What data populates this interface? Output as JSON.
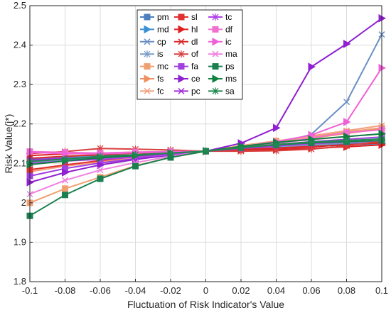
{
  "chart_data": {
    "type": "line",
    "xlabel": "Fluctuation of Risk Indicator's Value",
    "ylabel": "Risk Value(j*)",
    "xlim": [
      -0.1,
      0.1
    ],
    "ylim": [
      1.8,
      2.5
    ],
    "x": [
      -0.1,
      -0.08,
      -0.06,
      -0.04,
      -0.02,
      0,
      0.02,
      0.04,
      0.06,
      0.08,
      0.1
    ],
    "xtick_labels": [
      "-0.1",
      "-0.08",
      "-0.06",
      "-0.04",
      "-0.02",
      "0",
      "0.02",
      "0.04",
      "0.06",
      "0.08",
      "0.1"
    ],
    "yticks": [
      1.8,
      1.9,
      2.0,
      2.1,
      2.2,
      2.3,
      2.4,
      2.5
    ],
    "ytick_labels": [
      "1.8",
      "1.9",
      "2",
      "2.1",
      "2.2",
      "2.3",
      "2.4",
      "2.5"
    ],
    "grid": true,
    "legend_position": "top-center",
    "legend_columns": 3,
    "series": [
      {
        "name": "pm",
        "color": "#4d7fbf",
        "marker": "square",
        "values": [
          2.105,
          2.109,
          2.113,
          2.118,
          2.124,
          2.131,
          2.136,
          2.14,
          2.145,
          2.149,
          2.153
        ]
      },
      {
        "name": "md",
        "color": "#3b8fd4",
        "marker": "triangle",
        "values": [
          2.108,
          2.111,
          2.115,
          2.119,
          2.125,
          2.131,
          2.135,
          2.139,
          2.143,
          2.147,
          2.15
        ]
      },
      {
        "name": "cp",
        "color": "#6a8fc4",
        "marker": "x",
        "values": [
          2.112,
          2.115,
          2.119,
          2.122,
          2.126,
          2.131,
          2.138,
          2.148,
          2.174,
          2.256,
          2.427
        ]
      },
      {
        "name": "is",
        "color": "#7a9cc8",
        "marker": "asterisk",
        "values": [
          2.103,
          2.107,
          2.112,
          2.117,
          2.123,
          2.131,
          2.137,
          2.142,
          2.147,
          2.152,
          2.157
        ]
      },
      {
        "name": "mc",
        "color": "#f0a070",
        "marker": "square",
        "values": [
          2.0,
          2.036,
          2.065,
          2.094,
          2.115,
          2.131,
          2.145,
          2.157,
          2.168,
          2.18,
          2.19
        ]
      },
      {
        "name": "fs",
        "color": "#ee9060",
        "marker": "triangle",
        "values": [
          2.084,
          2.095,
          2.106,
          2.116,
          2.124,
          2.131,
          2.142,
          2.153,
          2.164,
          2.176,
          2.188
        ]
      },
      {
        "name": "fc",
        "color": "#f4a080",
        "marker": "x",
        "values": [
          2.079,
          2.093,
          2.104,
          2.114,
          2.123,
          2.131,
          2.144,
          2.156,
          2.17,
          2.183,
          2.196
        ]
      },
      {
        "name": "sl",
        "color": "#e03030",
        "marker": "square",
        "values": [
          2.084,
          2.096,
          2.107,
          2.117,
          2.125,
          2.131,
          2.135,
          2.139,
          2.143,
          2.147,
          2.152
        ]
      },
      {
        "name": "hl",
        "color": "#e02020",
        "marker": "triangle",
        "values": [
          2.12,
          2.124,
          2.126,
          2.128,
          2.13,
          2.131,
          2.133,
          2.135,
          2.138,
          2.142,
          2.147
        ]
      },
      {
        "name": "dl",
        "color": "#d82828",
        "marker": "x",
        "values": [
          2.113,
          2.118,
          2.122,
          2.126,
          2.128,
          2.131,
          2.134,
          2.138,
          2.142,
          2.147,
          2.152
        ]
      },
      {
        "name": "of",
        "color": "#d84040",
        "marker": "asterisk",
        "values": [
          2.125,
          2.13,
          2.138,
          2.136,
          2.134,
          2.131,
          2.131,
          2.132,
          2.136,
          2.144,
          2.157
        ]
      },
      {
        "name": "fa",
        "color": "#a040e0",
        "marker": "square",
        "values": [
          2.068,
          2.087,
          2.101,
          2.112,
          2.122,
          2.131,
          2.14,
          2.148,
          2.155,
          2.161,
          2.167
        ]
      },
      {
        "name": "ce",
        "color": "#9020d0",
        "marker": "triangle",
        "values": [
          2.052,
          2.077,
          2.096,
          2.11,
          2.121,
          2.131,
          2.151,
          2.19,
          2.345,
          2.403,
          2.468
        ]
      },
      {
        "name": "pc",
        "color": "#a030d8",
        "marker": "x",
        "values": [
          2.109,
          2.113,
          2.116,
          2.12,
          2.125,
          2.131,
          2.138,
          2.144,
          2.15,
          2.154,
          2.158
        ]
      },
      {
        "name": "tc",
        "color": "#b040e8",
        "marker": "asterisk",
        "values": [
          2.1,
          2.106,
          2.11,
          2.116,
          2.122,
          2.131,
          2.139,
          2.145,
          2.15,
          2.154,
          2.158
        ]
      },
      {
        "name": "df",
        "color": "#f070d0",
        "marker": "square",
        "values": [
          2.13,
          2.128,
          2.126,
          2.129,
          2.13,
          2.131,
          2.14,
          2.15,
          2.165,
          2.178,
          2.185
        ]
      },
      {
        "name": "ic",
        "color": "#f060d8",
        "marker": "triangle",
        "values": [
          2.128,
          2.125,
          2.124,
          2.127,
          2.129,
          2.131,
          2.142,
          2.155,
          2.172,
          2.205,
          2.342
        ]
      },
      {
        "name": "ma",
        "color": "#f080e0",
        "marker": "x",
        "values": [
          2.022,
          2.057,
          2.083,
          2.102,
          2.118,
          2.131,
          2.142,
          2.152,
          2.16,
          2.168,
          2.175
        ]
      },
      {
        "name": "ps",
        "color": "#1a8050",
        "marker": "square",
        "values": [
          1.967,
          2.02,
          2.061,
          2.093,
          2.115,
          2.131,
          2.14,
          2.147,
          2.152,
          2.155,
          2.158
        ]
      },
      {
        "name": "ms",
        "color": "#108040",
        "marker": "triangle",
        "values": [
          2.097,
          2.106,
          2.114,
          2.12,
          2.126,
          2.131,
          2.143,
          2.153,
          2.161,
          2.168,
          2.175
        ]
      },
      {
        "name": "sa",
        "color": "#208850",
        "marker": "asterisk",
        "values": [
          2.105,
          2.111,
          2.118,
          2.122,
          2.126,
          2.131,
          2.14,
          2.148,
          2.154,
          2.158,
          2.162
        ]
      }
    ]
  }
}
